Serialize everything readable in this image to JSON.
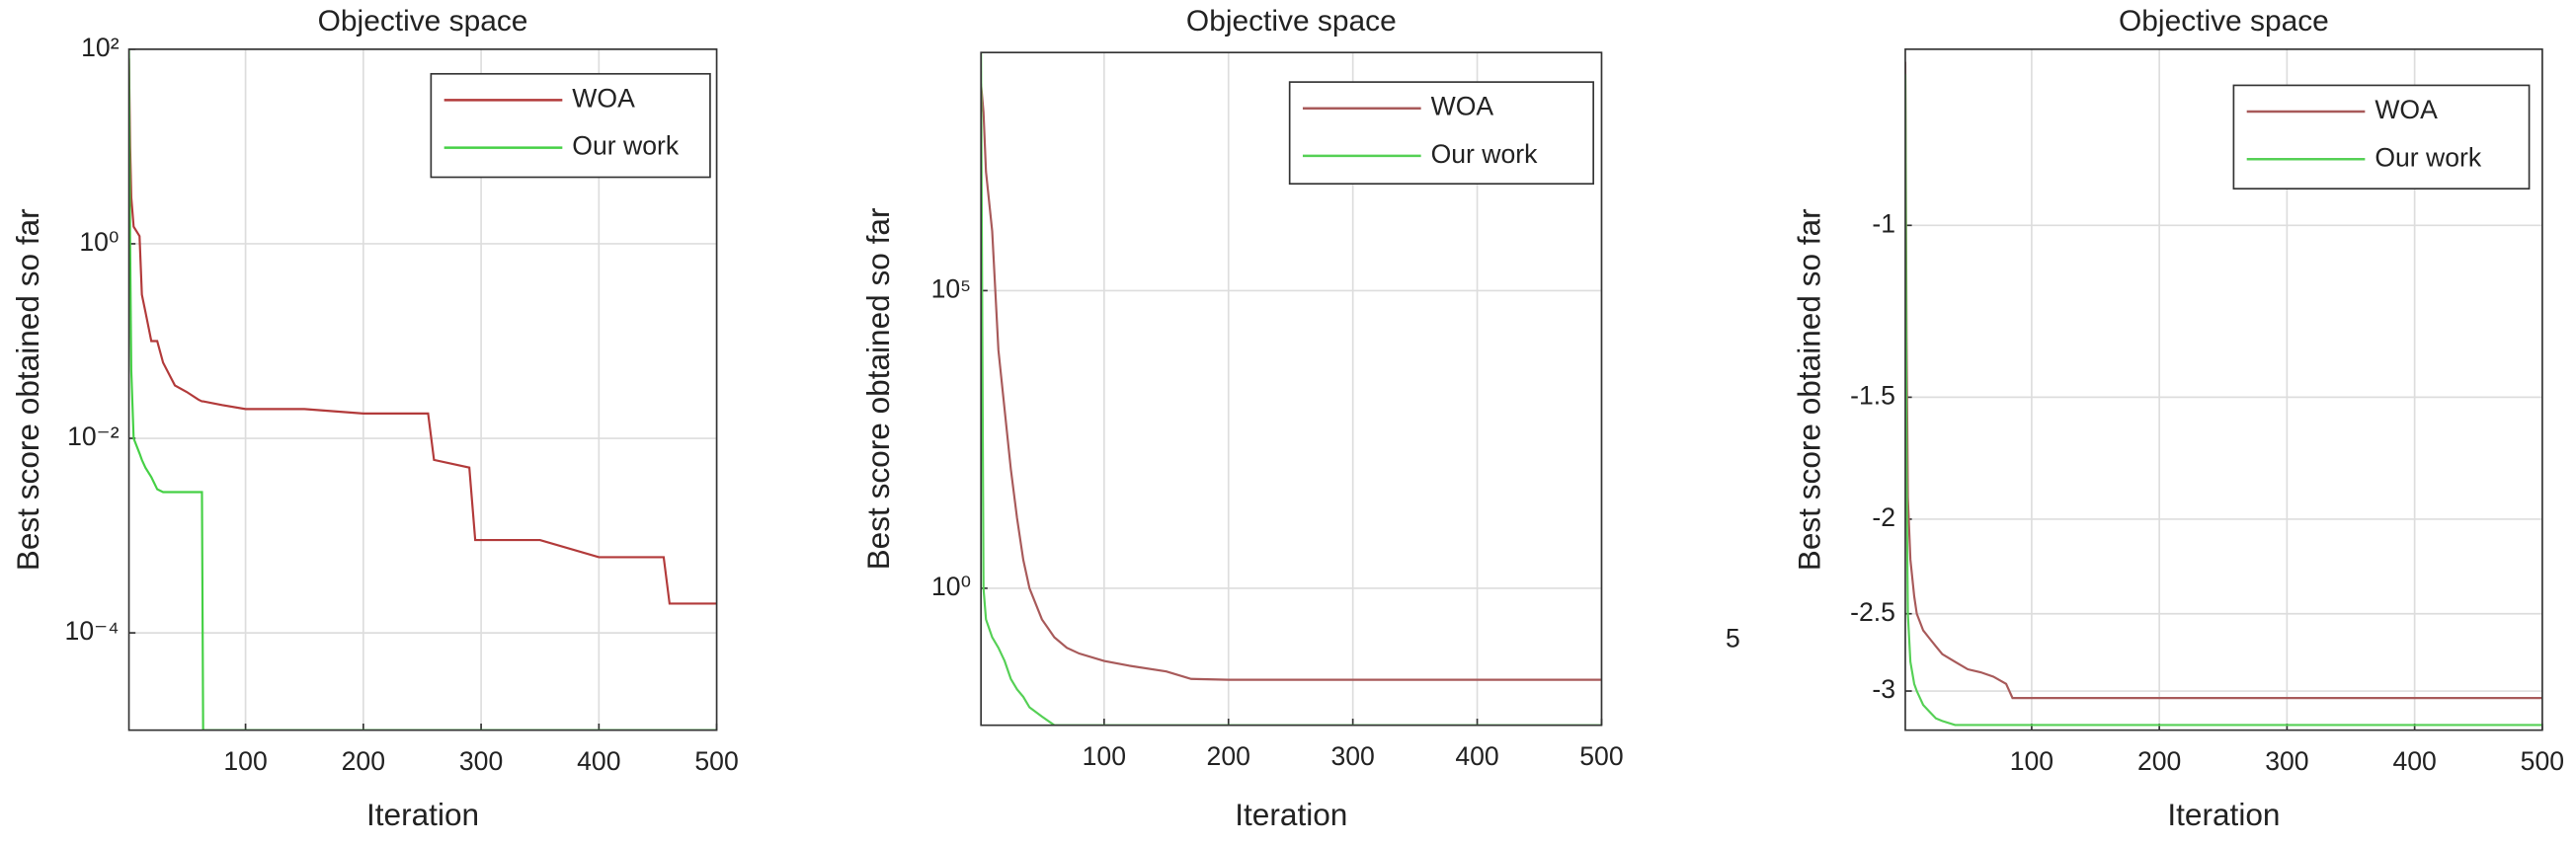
{
  "chart_data": [
    {
      "type": "line",
      "title": "Objective space",
      "xlabel": "Iteration",
      "ylabel": "Best score obtained so far",
      "yscale": "log",
      "grid": true,
      "legend": "upper right",
      "xlim": [
        1,
        500
      ],
      "ylim": [
        1e-05,
        100
      ],
      "xticks": [
        100,
        200,
        300,
        400,
        500
      ],
      "yticks": [
        {
          "value": 100,
          "label": "10²"
        },
        {
          "value": 1,
          "label": "10⁰"
        },
        {
          "value": 0.01,
          "label": "10⁻²"
        },
        {
          "value": 0.0001,
          "label": "10⁻⁴"
        }
      ],
      "x": [
        1,
        2,
        3,
        5,
        10,
        12,
        15,
        20,
        25,
        30,
        40,
        50,
        60,
        63,
        64,
        80,
        100,
        150,
        200,
        255,
        260,
        290,
        295,
        350,
        400,
        455,
        460,
        500
      ],
      "series": [
        {
          "name": "WOA",
          "color": "#b23a3a",
          "values": [
            80,
            10,
            3,
            1.5,
            1.2,
            0.3,
            0.2,
            0.1,
            0.1,
            0.06,
            0.035,
            0.03,
            0.025,
            0.024,
            0.024,
            0.022,
            0.02,
            0.02,
            0.018,
            0.018,
            0.006,
            0.005,
            0.0009,
            0.0009,
            0.0006,
            0.0006,
            0.0002,
            0.0002
          ]
        },
        {
          "name": "Our work",
          "color": "#45d045",
          "values": [
            100,
            1,
            0.05,
            0.01,
            0.007,
            0.006,
            0.005,
            0.004,
            0.003,
            0.0028,
            0.0028,
            0.0028,
            0.0028,
            0.0028,
            1e-05,
            1e-05,
            1e-05,
            1e-05,
            1e-05,
            1e-05,
            1e-05,
            1e-05,
            1e-05,
            1e-05,
            1e-05,
            1e-05,
            1e-05,
            1e-05
          ]
        }
      ]
    },
    {
      "type": "line",
      "title": "Objective space",
      "xlabel": "Iteration",
      "ylabel": "Best score obtained so far",
      "yscale": "log",
      "grid": true,
      "legend": "upper right",
      "xlim": [
        1,
        500
      ],
      "ylim": [
        0.005,
        1000000000
      ],
      "xticks": [
        100,
        200,
        300,
        400,
        500
      ],
      "yticks": [
        {
          "value": 100000,
          "label": "10⁵"
        },
        {
          "value": 1,
          "label": "10⁰"
        }
      ],
      "x": [
        1,
        3,
        5,
        10,
        15,
        20,
        25,
        30,
        35,
        40,
        50,
        60,
        70,
        80,
        100,
        120,
        150,
        170,
        200,
        300,
        400,
        500
      ],
      "series": [
        {
          "name": "WOA",
          "color": "#a85a5a",
          "values": [
            300000000,
            100000000,
            10000000,
            1000000,
            10000,
            1000,
            100,
            15,
            3,
            1,
            0.3,
            0.15,
            0.1,
            0.08,
            0.06,
            0.05,
            0.04,
            0.03,
            0.029,
            0.029,
            0.029,
            0.029
          ]
        },
        {
          "name": "Our work",
          "color": "#55d055",
          "values": [
            1000000000,
            1,
            0.3,
            0.15,
            0.1,
            0.06,
            0.03,
            0.02,
            0.015,
            0.01,
            0.007,
            0.005,
            0.005,
            0.005,
            0.005,
            0.005,
            0.005,
            0.005,
            0.005,
            0.005,
            0.005,
            0.005
          ]
        }
      ]
    },
    {
      "type": "line",
      "title": "Objective space",
      "xlabel": "Iteration",
      "ylabel": "Best score obtained so far",
      "yscale": "log",
      "grid": true,
      "legend": "upper right",
      "annotation": "5",
      "xlim": [
        1,
        500
      ],
      "ylim": [
        -3.29,
        -0.66
      ],
      "xticks": [
        100,
        200,
        300,
        400,
        500
      ],
      "yticks": [
        -1,
        -1.5,
        -2,
        -2.5,
        -3
      ],
      "x": [
        1,
        2,
        3,
        5,
        8,
        10,
        15,
        20,
        25,
        30,
        40,
        50,
        60,
        70,
        80,
        85,
        100,
        200,
        300,
        400,
        500
      ],
      "series": [
        {
          "name": "WOA",
          "color": "#a85a5a",
          "values": [
            -0.68,
            -1.3,
            -1.9,
            -2.2,
            -2.4,
            -2.5,
            -2.6,
            -2.65,
            -2.7,
            -2.75,
            -2.8,
            -2.85,
            -2.87,
            -2.9,
            -2.95,
            -3.05,
            -3.05,
            -3.05,
            -3.05,
            -3.05,
            -3.05
          ]
        },
        {
          "name": "Our work",
          "color": "#55d055",
          "values": [
            -0.7,
            -1.8,
            -2.5,
            -2.8,
            -2.95,
            -3.0,
            -3.1,
            -3.15,
            -3.2,
            -3.22,
            -3.25,
            -3.25,
            -3.25,
            -3.25,
            -3.25,
            -3.25,
            -3.25,
            -3.25,
            -3.25,
            -3.25,
            -3.25
          ]
        }
      ]
    }
  ]
}
